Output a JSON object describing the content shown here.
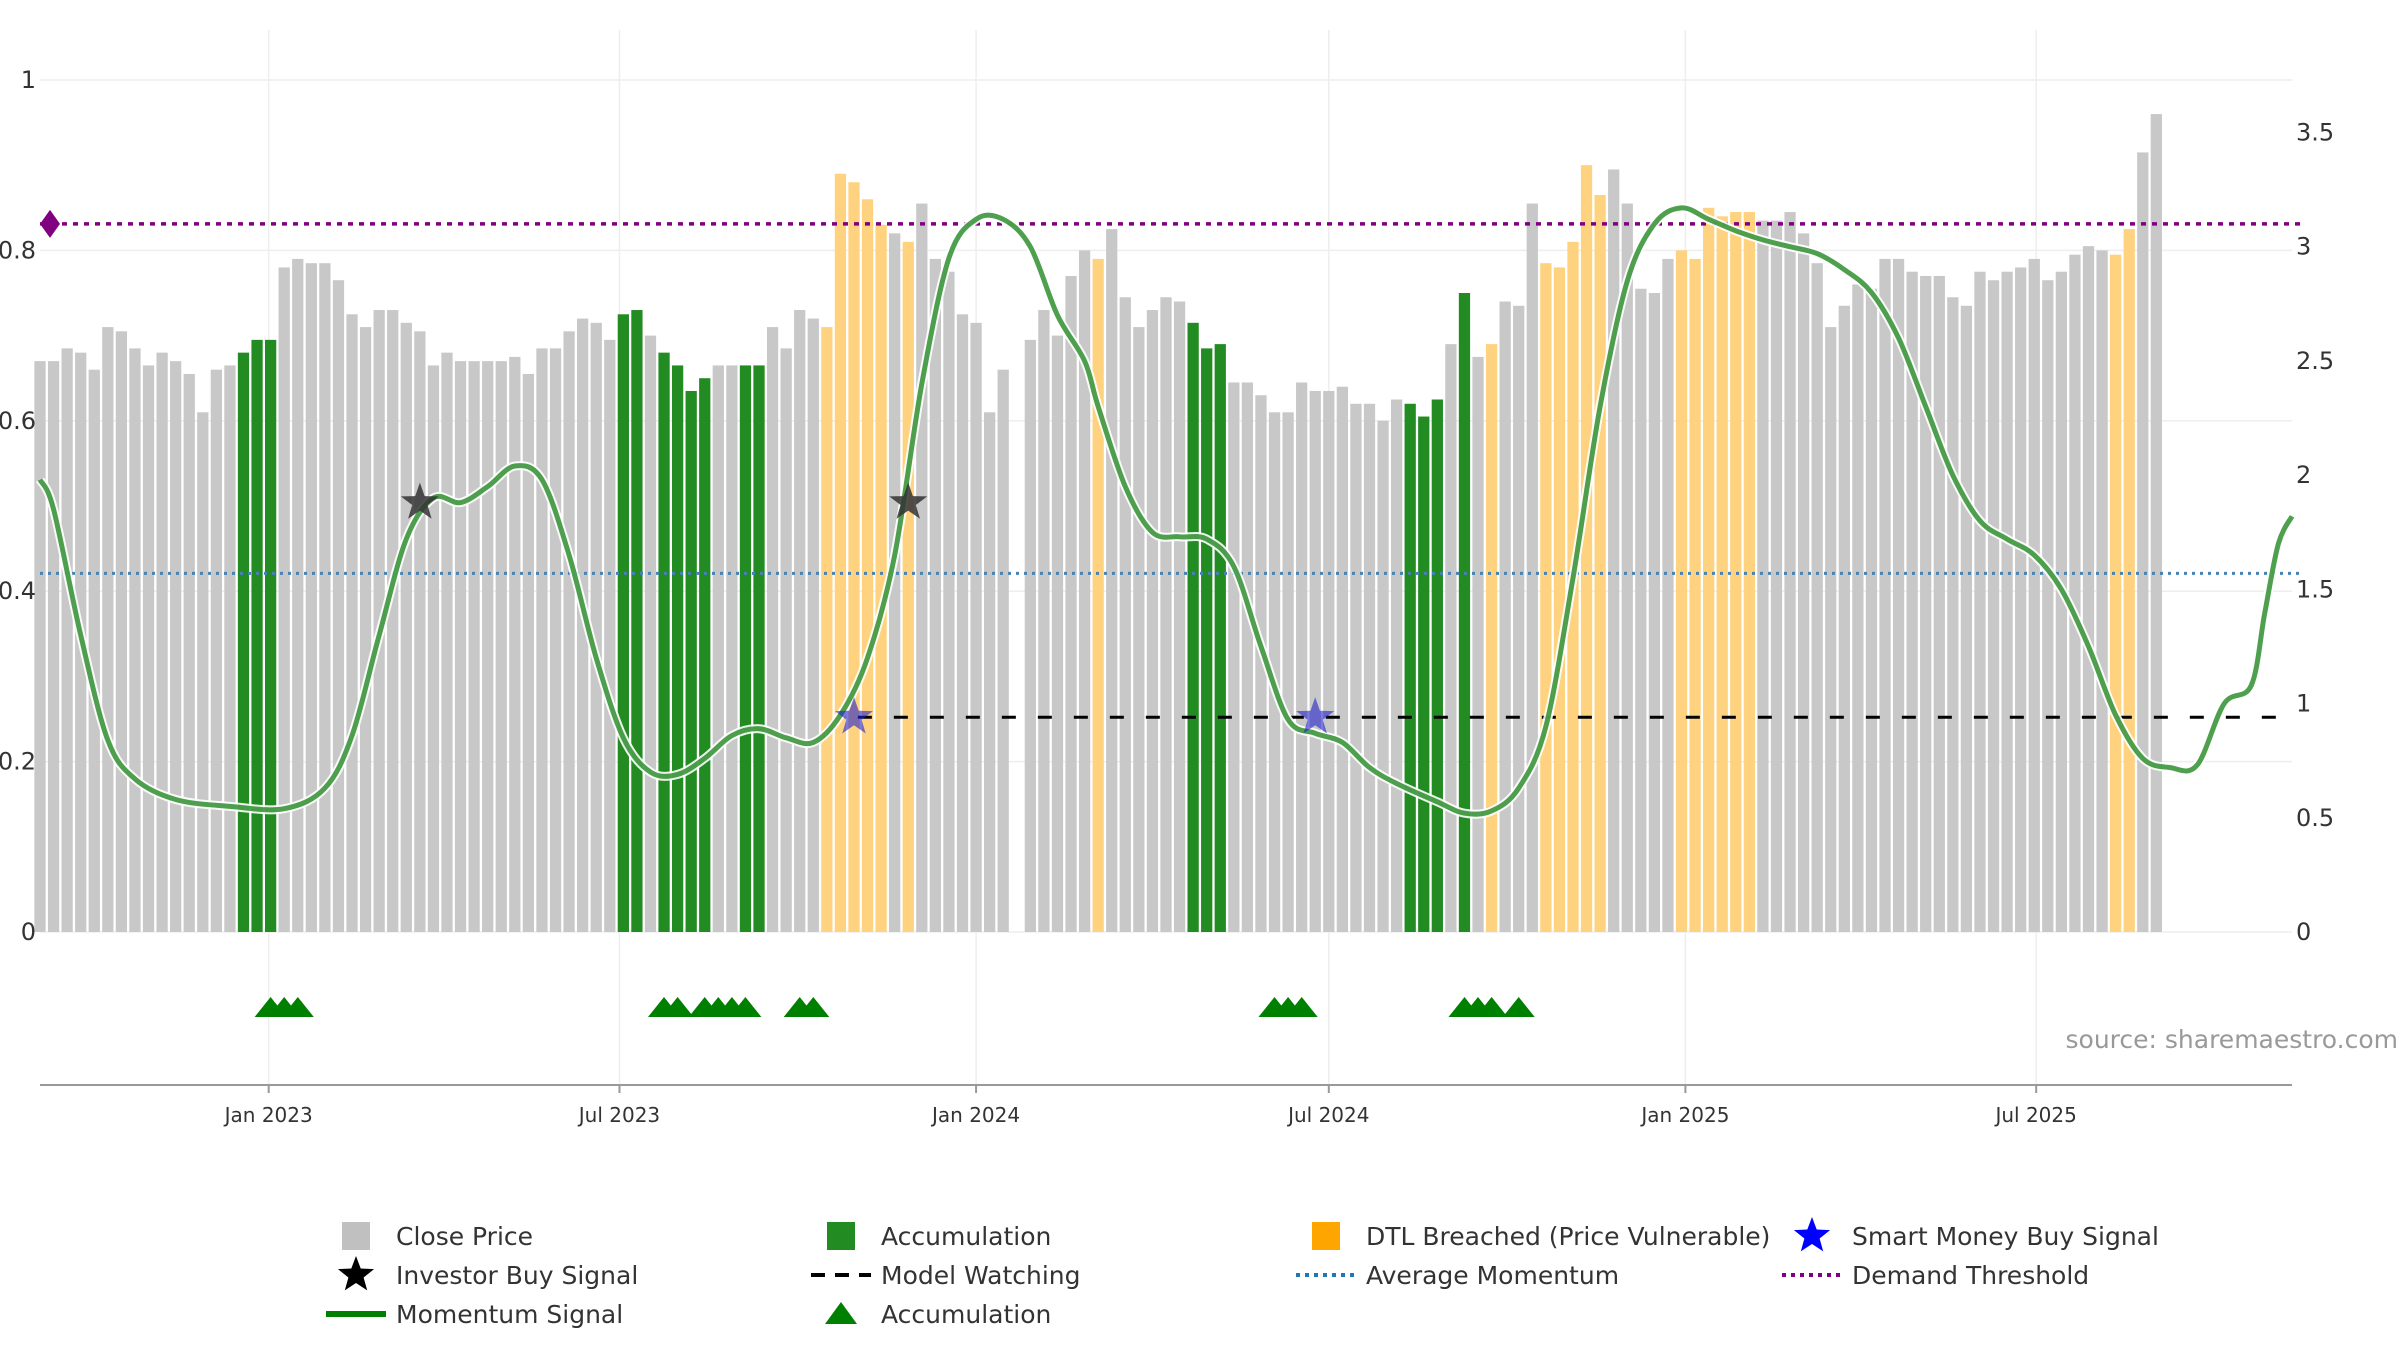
{
  "chart_data": {
    "type": "bar",
    "subtype": "bar+line+markers",
    "source_text": "source: sharemaestro.com",
    "x_date_range": [
      "2022-09-05",
      "2025-11-10"
    ],
    "x_tick_labels": [
      {
        "date": "2023-01-01",
        "label": "Jan 2023"
      },
      {
        "date": "2023-07-01",
        "label": "Jul 2023"
      },
      {
        "date": "2024-01-01",
        "label": "Jan 2024"
      },
      {
        "date": "2024-07-01",
        "label": "Jul 2024"
      },
      {
        "date": "2025-01-01",
        "label": "Jan 2025"
      },
      {
        "date": "2025-07-01",
        "label": "Jul 2025"
      }
    ],
    "left_axis": {
      "ylim": [
        0,
        1
      ],
      "ticks": [
        {
          "value": 0,
          "label": "0"
        },
        {
          "value": 0.2,
          "label": "0.2"
        },
        {
          "value": 0.4,
          "label": "0.4"
        },
        {
          "value": 0.6,
          "label": "0.6"
        },
        {
          "value": 0.8,
          "label": "0.8"
        },
        {
          "value": 1,
          "label": "1"
        }
      ]
    },
    "right_axis": {
      "ylim": [
        0,
        3.73
      ],
      "ticks": [
        {
          "value": 0,
          "label": "0"
        },
        {
          "value": 0.5,
          "label": "0.5"
        },
        {
          "value": 1,
          "label": "1"
        },
        {
          "value": 1.5,
          "label": "1.5"
        },
        {
          "value": 2,
          "label": "2"
        },
        {
          "value": 2.5,
          "label": "2.5"
        },
        {
          "value": 3,
          "label": "3"
        },
        {
          "value": 3.5,
          "label": "3.5"
        }
      ]
    },
    "grid": true,
    "colors": {
      "close": "#c8c8c8",
      "accumulation": "#228b22",
      "dtl": "#ffd27f",
      "momentum": "#2e8b2e",
      "momentum_dark": "#0a7a0a",
      "average": "#4682b4",
      "demand": "#800080",
      "watching": "#000000",
      "investor_star": "#333333",
      "smart_star": "#2222cc",
      "triangle": "#008000"
    },
    "close_bars": {
      "week_step_days": 7,
      "values": [
        0.67,
        0.67,
        0.685,
        0.68,
        0.66,
        0.71,
        0.705,
        0.685,
        0.665,
        0.68,
        0.67,
        0.655,
        0.61,
        0.66,
        0.665,
        0.68,
        0.695,
        0.695,
        0.78,
        0.79,
        0.785,
        0.785,
        0.765,
        0.725,
        0.71,
        0.73,
        0.73,
        0.715,
        0.705,
        0.665,
        0.68,
        0.67,
        0.67,
        0.67,
        0.67,
        0.675,
        0.655,
        0.685,
        0.685,
        0.705,
        0.72,
        0.715,
        0.695,
        0.725,
        0.73,
        0.7,
        0.68,
        0.665,
        0.635,
        0.65,
        0.665,
        0.665,
        0.665,
        0.665,
        0.71,
        0.685,
        0.73,
        0.72,
        0.71,
        0.89,
        0.88,
        0.86,
        0.83,
        0.82,
        0.81,
        0.855,
        0.79,
        0.775,
        0.725,
        0.715,
        0.61,
        0.66,
        0.0,
        0.695,
        0.73,
        0.7,
        0.77,
        0.8,
        0.79,
        0.825,
        0.745,
        0.71,
        0.73,
        0.745,
        0.74,
        0.715,
        0.685,
        0.69,
        0.645,
        0.645,
        0.63,
        0.61,
        0.61,
        0.645,
        0.635,
        0.635,
        0.64,
        0.62,
        0.62,
        0.6,
        0.625,
        0.62,
        0.605,
        0.625,
        0.69,
        0.75,
        0.675,
        0.69,
        0.74,
        0.735,
        0.855,
        0.785,
        0.78,
        0.81,
        0.9,
        0.865,
        0.895,
        0.855,
        0.755,
        0.75,
        0.79,
        0.8,
        0.79,
        0.85,
        0.84,
        0.845,
        0.845,
        0.835,
        0.835,
        0.845,
        0.82,
        0.785,
        0.71,
        0.735,
        0.76,
        0.755,
        0.79,
        0.79,
        0.775,
        0.77,
        0.77,
        0.745,
        0.735,
        0.775,
        0.765,
        0.775,
        0.78,
        0.79,
        0.765,
        0.775,
        0.795,
        0.805,
        0.8,
        0.795,
        0.825,
        0.915,
        0.96
      ],
      "categories": "GGGGGGGGGGGGGGGAAAGGGGGGGGGGGGGGGGGGGGGGGGGAAGAAAAGGAAGGGGDDDDDGDGGGGGGGGGGGGGDGGGGGGAAAGGGGGGGGGGGGGAAAGAGDGGGDDDDDGGGGGDDDDDDGGGGGGGGGGGGGGGGGGGGGGGGGGDD"
    },
    "momentum_signal": {
      "axis": "right",
      "points": [
        [
          "2022-09-05",
          1.98
        ],
        [
          "2022-09-12",
          1.85
        ],
        [
          "2022-09-26",
          1.3
        ],
        [
          "2022-10-10",
          0.84
        ],
        [
          "2022-10-24",
          0.67
        ],
        [
          "2022-11-14",
          0.58
        ],
        [
          "2022-12-12",
          0.55
        ],
        [
          "2023-01-09",
          0.54
        ],
        [
          "2023-01-30",
          0.63
        ],
        [
          "2023-02-13",
          0.86
        ],
        [
          "2023-02-27",
          1.3
        ],
        [
          "2023-03-13",
          1.72
        ],
        [
          "2023-03-27",
          1.9
        ],
        [
          "2023-04-10",
          1.88
        ],
        [
          "2023-04-24",
          1.95
        ],
        [
          "2023-05-08",
          2.04
        ],
        [
          "2023-05-22",
          1.98
        ],
        [
          "2023-06-05",
          1.65
        ],
        [
          "2023-06-19",
          1.2
        ],
        [
          "2023-07-03",
          0.85
        ],
        [
          "2023-07-17",
          0.7
        ],
        [
          "2023-07-31",
          0.69
        ],
        [
          "2023-08-14",
          0.76
        ],
        [
          "2023-08-28",
          0.86
        ],
        [
          "2023-09-11",
          0.89
        ],
        [
          "2023-09-25",
          0.85
        ],
        [
          "2023-10-09",
          0.83
        ],
        [
          "2023-10-23",
          0.95
        ],
        [
          "2023-11-06",
          1.2
        ],
        [
          "2023-11-20",
          1.65
        ],
        [
          "2023-12-04",
          2.4
        ],
        [
          "2023-12-18",
          2.95
        ],
        [
          "2024-01-01",
          3.12
        ],
        [
          "2024-01-15",
          3.12
        ],
        [
          "2024-01-29",
          3.0
        ],
        [
          "2024-02-12",
          2.7
        ],
        [
          "2024-02-26",
          2.5
        ],
        [
          "2024-03-04",
          2.3
        ],
        [
          "2024-03-18",
          1.95
        ],
        [
          "2024-04-01",
          1.75
        ],
        [
          "2024-04-15",
          1.73
        ],
        [
          "2024-04-29",
          1.72
        ],
        [
          "2024-05-13",
          1.6
        ],
        [
          "2024-05-27",
          1.25
        ],
        [
          "2024-06-10",
          0.93
        ],
        [
          "2024-06-24",
          0.87
        ],
        [
          "2024-07-08",
          0.83
        ],
        [
          "2024-07-22",
          0.72
        ],
        [
          "2024-08-05",
          0.65
        ],
        [
          "2024-08-26",
          0.57
        ],
        [
          "2024-09-09",
          0.52
        ],
        [
          "2024-09-23",
          0.53
        ],
        [
          "2024-10-07",
          0.63
        ],
        [
          "2024-10-21",
          0.9
        ],
        [
          "2024-11-04",
          1.55
        ],
        [
          "2024-11-18",
          2.3
        ],
        [
          "2024-12-02",
          2.85
        ],
        [
          "2024-12-16",
          3.1
        ],
        [
          "2024-12-30",
          3.17
        ],
        [
          "2025-01-13",
          3.12
        ],
        [
          "2025-01-27",
          3.07
        ],
        [
          "2025-02-10",
          3.03
        ],
        [
          "2025-02-24",
          3.0
        ],
        [
          "2025-03-10",
          2.97
        ],
        [
          "2025-03-24",
          2.9
        ],
        [
          "2025-04-07",
          2.8
        ],
        [
          "2025-04-21",
          2.6
        ],
        [
          "2025-05-05",
          2.3
        ],
        [
          "2025-05-19",
          2.0
        ],
        [
          "2025-06-02",
          1.8
        ],
        [
          "2025-06-16",
          1.72
        ],
        [
          "2025-06-30",
          1.65
        ],
        [
          "2025-07-14",
          1.5
        ],
        [
          "2025-07-28",
          1.25
        ],
        [
          "2025-08-11",
          0.95
        ],
        [
          "2025-08-25",
          0.76
        ],
        [
          "2025-09-08",
          0.72
        ],
        [
          "2025-09-22",
          0.73
        ],
        [
          "2025-10-06",
          1.0
        ],
        [
          "2025-10-20",
          1.08
        ],
        [
          "2025-10-27",
          1.4
        ],
        [
          "2025-11-03",
          1.7
        ],
        [
          "2025-11-10",
          1.82
        ]
      ]
    },
    "average_momentum": {
      "axis": "right",
      "value": 1.57
    },
    "demand_threshold": {
      "axis": "right",
      "value": 3.1
    },
    "model_watching": {
      "axis": "right",
      "value": 0.94,
      "from": "2023-11-01",
      "to": "2025-11-10"
    },
    "investor_buy_signals": [
      {
        "date": "2023-03-20",
        "axis": "right",
        "value": 1.88
      },
      {
        "date": "2023-11-27",
        "axis": "right",
        "value": 1.88
      }
    ],
    "smart_money_buy_signals": [
      {
        "date": "2023-10-30",
        "axis": "right",
        "value": 0.94
      },
      {
        "date": "2024-06-24",
        "axis": "right",
        "value": 0.94
      }
    ],
    "accumulation_triangle_dates": [
      "2023-01-02",
      "2023-01-09",
      "2023-01-16",
      "2023-07-24",
      "2023-07-31",
      "2023-08-14",
      "2023-08-21",
      "2023-08-28",
      "2023-09-04",
      "2023-10-02",
      "2023-10-09",
      "2024-06-03",
      "2024-06-10",
      "2024-06-17",
      "2024-09-09",
      "2024-09-16",
      "2024-09-23",
      "2024-10-07"
    ],
    "legend": {
      "items": [
        {
          "label": "Close Price",
          "marker": "square",
          "color": "#c0c0c0"
        },
        {
          "label": "Accumulation",
          "marker": "square",
          "color": "#228b22"
        },
        {
          "label": "DTL Breached (Price Vulnerable)",
          "marker": "square",
          "color": "#ffa500"
        },
        {
          "label": "Smart Money Buy Signal",
          "marker": "star",
          "color": "#0000ff"
        },
        {
          "label": "Investor Buy Signal",
          "marker": "star",
          "color": "#000000"
        },
        {
          "label": "Model Watching",
          "marker": "dash",
          "color": "#000000"
        },
        {
          "label": "Average Momentum",
          "marker": "dots",
          "color": "#1f77b4"
        },
        {
          "label": "Demand Threshold",
          "marker": "dots",
          "color": "#800080"
        },
        {
          "label": "Momentum Signal",
          "marker": "line",
          "color": "#008000"
        },
        {
          "label": "Accumulation",
          "marker": "triangle",
          "color": "#008000"
        }
      ]
    }
  }
}
